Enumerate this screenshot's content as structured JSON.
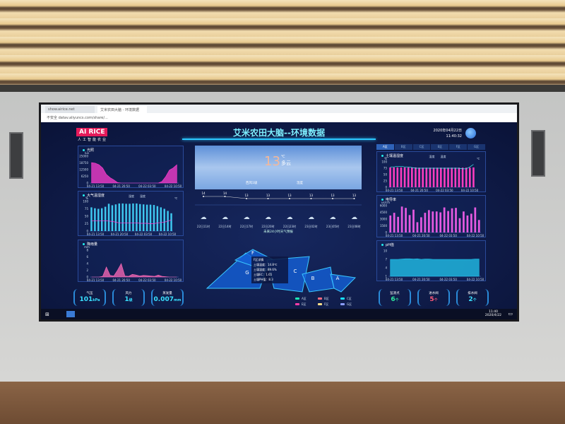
{
  "browser": {
    "tabs": [
      "show.airice.net",
      "艾米农田大脑 - 环境数据"
    ],
    "address_prefix": "不安全",
    "address": "datav.aliyuncs.com/share/..."
  },
  "header": {
    "logo": "AI RICE",
    "logo_sub": "人工智能农业",
    "title": "艾米农田大脑--环境数据",
    "date": "2020年04月22日",
    "time": "11:40:32"
  },
  "panels": {
    "light": "光照",
    "air": "大气温湿度",
    "rain": "降雨量",
    "soil": "土壤温湿度",
    "ec": "电导率",
    "ph": "pH值"
  },
  "stats_left": [
    {
      "label": "气压",
      "value": "101",
      "unit": "kPa"
    },
    {
      "label": "风力",
      "value": "1",
      "unit": "级"
    },
    {
      "label": "蒸发量",
      "value": "0.007",
      "unit": "mm"
    }
  ],
  "stats_right": [
    {
      "label": "监测点",
      "value": "6",
      "unit": "个",
      "color": "#2ee8a0"
    },
    {
      "label": "进水阀",
      "value": "5",
      "unit": "个",
      "color": "#ff5a7a"
    },
    {
      "label": "排水阀",
      "value": "2",
      "unit": "个",
      "color": "#3ae0ff"
    }
  ],
  "weather": {
    "temp": "13",
    "unit": "℃",
    "cond": "多云",
    "wind": "西风1级",
    "humidity": "湿度",
    "forecast_title": "未来24小时天气预报",
    "hours": [
      "22日11时",
      "22日14时",
      "22日17时",
      "22日20时",
      "22日23时",
      "23日02时",
      "23日05时",
      "23日08时"
    ],
    "temps": [
      14,
      14,
      13,
      13,
      13,
      13,
      13,
      13
    ]
  },
  "zone_tabs": [
    "A区",
    "B区",
    "C区",
    "E区",
    "F区",
    "G区"
  ],
  "map": {
    "zones": [
      "A",
      "B",
      "C",
      "F",
      "G"
    ],
    "tooltip": [
      "F区详情",
      "土壤温度：14.8℃",
      "土壤湿度：89.6%",
      "土壤EC：1.65",
      "土壤PH值：8.3"
    ],
    "legend": [
      {
        "label": "A区",
        "color": "#1de9b6"
      },
      {
        "label": "B区",
        "color": "#ff6b81"
      },
      {
        "label": "C区",
        "color": "#18e0ff"
      },
      {
        "label": "E区",
        "color": "#ff3da8"
      },
      {
        "label": "F区",
        "color": "#ffe08a"
      },
      {
        "label": "G区",
        "color": "#8c9eff"
      }
    ]
  },
  "taskbar": {
    "time": "11:40",
    "date": "2020/4/22"
  },
  "chart_data": [
    {
      "id": "light",
      "type": "area",
      "xticks": [
        "04-21 13:50",
        "04-21 20:50",
        "04-22 03:50",
        "04-22 10:50"
      ],
      "yunit": "lux",
      "ylim": [
        0,
        25000
      ],
      "yticks": [
        0,
        6250,
        12500,
        18750,
        25000
      ],
      "values": [
        19000,
        18500,
        17000,
        14000,
        8000,
        5000,
        3000,
        500,
        0,
        0,
        0,
        0,
        0,
        0,
        0,
        0,
        0,
        0,
        0,
        1500,
        6000,
        12000,
        14000,
        17000
      ],
      "color": "#ff3dd0"
    },
    {
      "id": "air",
      "type": "bar+line",
      "legend": [
        "湿度",
        "温度"
      ],
      "xticks": [
        "04-21 13:50",
        "04-21 20:50",
        "04-22 03:50",
        "04-22 10:50"
      ],
      "yunit": "%",
      "y2unit": "℃",
      "ylim": [
        0,
        100
      ],
      "y2lim": [
        0,
        40
      ],
      "bars": [
        80,
        77,
        75,
        77,
        82,
        92,
        87,
        90,
        93,
        93,
        92,
        92,
        93,
        93,
        91,
        90,
        89,
        89,
        88,
        84,
        80,
        75,
        68,
        60
      ],
      "line": [
        14,
        14,
        14,
        14,
        14,
        13.5,
        13,
        12,
        11,
        11,
        11,
        11,
        11,
        11,
        10.5,
        10.5,
        10.5,
        10,
        10,
        11,
        11.5,
        12,
        13.5,
        15
      ]
    },
    {
      "id": "rain",
      "type": "area",
      "xticks": [
        "04-21 13:50",
        "04-21 20:50",
        "04-22 03:50",
        "04-22 10:50"
      ],
      "yunit": "mm",
      "ylim": [
        0,
        8
      ],
      "yticks": [
        0,
        2,
        4,
        6,
        8
      ],
      "values": [
        0,
        0,
        0,
        0.2,
        3,
        0.5,
        0.3,
        2,
        4,
        0.3,
        0.2,
        0.8,
        0.6,
        0.3,
        0.5,
        0.4,
        0.3,
        0.2,
        0.6,
        0.2,
        0.1,
        0,
        0,
        0
      ],
      "color": "#ff6ab8"
    },
    {
      "id": "soil",
      "type": "bar+line",
      "legend": [
        "湿度",
        "温度"
      ],
      "xticks": [
        "04-21 13:50",
        "04-21 20:50",
        "04-22 03:50",
        "04-22 10:50"
      ],
      "yunit": "%",
      "y2unit": "℃",
      "ylim": [
        0,
        100
      ],
      "y2lim": [
        0,
        20
      ],
      "bars": [
        78,
        78,
        78,
        78,
        78,
        78,
        78,
        78,
        77,
        77,
        77,
        77,
        77,
        77,
        77,
        77,
        77,
        77,
        77,
        77,
        77,
        77,
        77,
        78
      ],
      "line": [
        16,
        16,
        16.5,
        16.5,
        16,
        16,
        15.5,
        15,
        15,
        15,
        15,
        15,
        15,
        15,
        15,
        15,
        15,
        15,
        15,
        15,
        14.5,
        14.5,
        16,
        18
      ]
    },
    {
      "id": "ec",
      "type": "bar",
      "xticks": [
        "04-21 13:50",
        "04-21 20:50",
        "04-22 03:50",
        "04-22 10:50"
      ],
      "yunit": "us/cm",
      "ylim": [
        0,
        6000
      ],
      "yticks": [
        0,
        1500,
        3000,
        4500,
        6000
      ],
      "values": [
        3800,
        4400,
        3500,
        5800,
        5500,
        3900,
        5100,
        2300,
        3400,
        4400,
        5000,
        4700,
        4700,
        4500,
        5600,
        4800,
        5400,
        5500,
        3200,
        4700,
        3800,
        4200,
        5600,
        2800
      ]
    },
    {
      "id": "ph",
      "type": "area",
      "xticks": [
        "04-21 13:50",
        "04-21 20:50",
        "04-22 03:50",
        "04-22 10:50"
      ],
      "ylim": [
        1,
        10
      ],
      "yticks": [
        1,
        4,
        7,
        10
      ],
      "values": [
        7,
        7,
        7,
        7.1,
        7.2,
        7.2,
        7.1,
        7.2,
        7,
        7.1,
        7.1,
        7,
        7,
        7,
        7,
        7,
        7,
        7,
        7,
        7,
        7,
        7,
        7.1,
        7.1
      ],
      "color": "#22c8f0"
    }
  ]
}
